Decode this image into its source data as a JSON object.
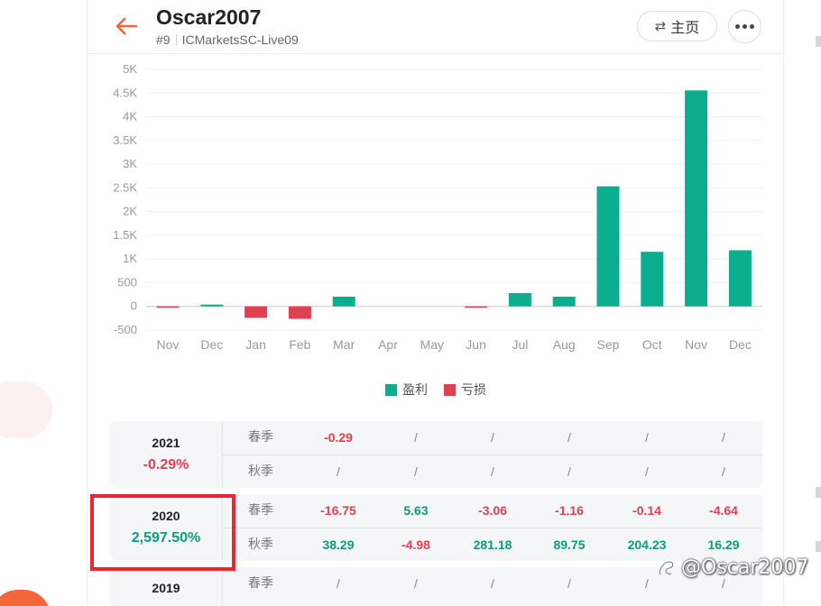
{
  "header": {
    "title": "Oscar2007",
    "rank": "#9",
    "server": "ICMarketsSC-Live09",
    "home_label": "主页",
    "home_icon": "swap-icon",
    "back_icon": "arrow-left-icon",
    "more_icon": "more-dots-icon"
  },
  "colors": {
    "accent": "#f2663a",
    "profit": "#0aae8f",
    "loss": "#e0414e"
  },
  "chart_data": {
    "type": "bar",
    "categories": [
      "Nov",
      "Dec",
      "Jan",
      "Feb",
      "Mar",
      "Apr",
      "May",
      "Jun",
      "Jul",
      "Aug",
      "Sep",
      "Oct",
      "Nov",
      "Dec"
    ],
    "series": [
      {
        "name": "盈利",
        "values": [
          -16.75,
          38.29,
          -242.44,
          -262.65,
          204.23,
          0,
          0,
          -16.75,
          281.18,
          204.23,
          2533.33,
          1151.84,
          4557.23,
          1183.13
        ]
      }
    ],
    "legend": [
      {
        "name": "盈利",
        "color": "#0aae8f"
      },
      {
        "name": "亏损",
        "color": "#e0414e"
      }
    ],
    "yticks": [
      "5K",
      "4.5K",
      "4K",
      "3.5K",
      "3K",
      "2.5K",
      "2K",
      "1.5K",
      "1K",
      "500",
      "0",
      "-500"
    ],
    "ylim": [
      -500,
      5000
    ],
    "grid": true,
    "legend_position": "bottom-center"
  },
  "years": [
    {
      "year": "2021",
      "total": "-0.29%",
      "rows": [
        {
          "season": "春季",
          "values": [
            "-0.29",
            "/",
            "/",
            "/",
            "/",
            "/"
          ]
        },
        {
          "season": "秋季",
          "values": [
            "/",
            "/",
            "/",
            "/",
            "/",
            "/"
          ]
        }
      ]
    },
    {
      "year": "2020",
      "total": "2,597.50%",
      "rows": [
        {
          "season": "春季",
          "values": [
            "-16.75",
            "5.63",
            "-3.06",
            "-1.16",
            "-0.14",
            "-4.64"
          ]
        },
        {
          "season": "秋季",
          "values": [
            "38.29",
            "-4.98",
            "281.18",
            "89.75",
            "204.23",
            "16.29"
          ]
        }
      ]
    },
    {
      "year": "2019",
      "total": "",
      "rows": [
        {
          "season": "春季",
          "values": [
            "/",
            "/",
            "/",
            "/",
            "/",
            "/"
          ]
        }
      ]
    }
  ],
  "watermark": "@Oscar2007"
}
